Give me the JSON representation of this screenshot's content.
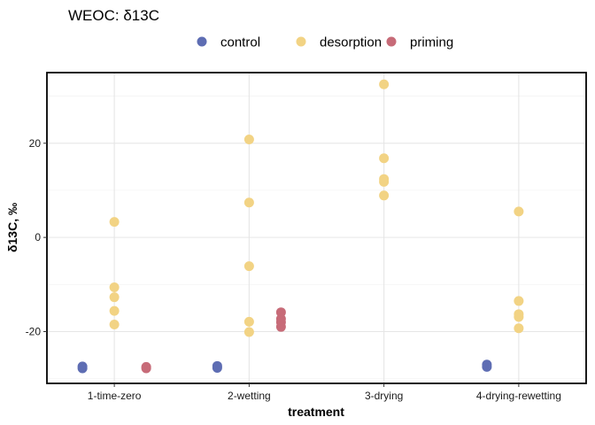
{
  "chart_data": {
    "type": "scatter",
    "title": "WEOC: δ13C",
    "xlabel": "treatment",
    "ylabel": "δ13C, ‰",
    "categories": [
      "1-time-zero",
      "2-wetting",
      "3-drying",
      "4-drying-rewetting"
    ],
    "ylim": [
      -31,
      35
    ],
    "yticks": [
      -20,
      0,
      20
    ],
    "grid": true,
    "legend_position": "top",
    "series": [
      {
        "name": "control",
        "color": "#5e6db3",
        "offset": "left",
        "points": [
          {
            "category": "1-time-zero",
            "y": -27.4
          },
          {
            "category": "1-time-zero",
            "y": -27.8
          },
          {
            "category": "2-wetting",
            "y": -27.3
          },
          {
            "category": "2-wetting",
            "y": -27.7
          },
          {
            "category": "4-drying-rewetting",
            "y": -27.0
          },
          {
            "category": "4-drying-rewetting",
            "y": -27.5
          }
        ]
      },
      {
        "name": "desorption",
        "color": "#f2d384",
        "offset": "center",
        "points": [
          {
            "category": "1-time-zero",
            "y": 3.3
          },
          {
            "category": "1-time-zero",
            "y": -10.6
          },
          {
            "category": "1-time-zero",
            "y": -12.7
          },
          {
            "category": "1-time-zero",
            "y": -15.6
          },
          {
            "category": "1-time-zero",
            "y": -18.5
          },
          {
            "category": "2-wetting",
            "y": 20.8
          },
          {
            "category": "2-wetting",
            "y": 7.4
          },
          {
            "category": "2-wetting",
            "y": -6.1
          },
          {
            "category": "2-wetting",
            "y": -17.9
          },
          {
            "category": "2-wetting",
            "y": -20.1
          },
          {
            "category": "3-drying",
            "y": 32.5
          },
          {
            "category": "3-drying",
            "y": 16.8
          },
          {
            "category": "3-drying",
            "y": 12.4
          },
          {
            "category": "3-drying",
            "y": 11.8
          },
          {
            "category": "3-drying",
            "y": 8.9
          },
          {
            "category": "4-drying-rewetting",
            "y": 5.5
          },
          {
            "category": "4-drying-rewetting",
            "y": -13.5
          },
          {
            "category": "4-drying-rewetting",
            "y": -16.3
          },
          {
            "category": "4-drying-rewetting",
            "y": -16.9
          },
          {
            "category": "4-drying-rewetting",
            "y": -19.3
          }
        ]
      },
      {
        "name": "priming",
        "color": "#c76b78",
        "offset": "right",
        "points": [
          {
            "category": "1-time-zero",
            "y": -27.5
          },
          {
            "category": "1-time-zero",
            "y": -27.8
          },
          {
            "category": "2-wetting",
            "y": -15.9
          },
          {
            "category": "2-wetting",
            "y": -17.3
          },
          {
            "category": "2-wetting",
            "y": -18.0
          },
          {
            "category": "2-wetting",
            "y": -19.0
          }
        ]
      }
    ]
  }
}
